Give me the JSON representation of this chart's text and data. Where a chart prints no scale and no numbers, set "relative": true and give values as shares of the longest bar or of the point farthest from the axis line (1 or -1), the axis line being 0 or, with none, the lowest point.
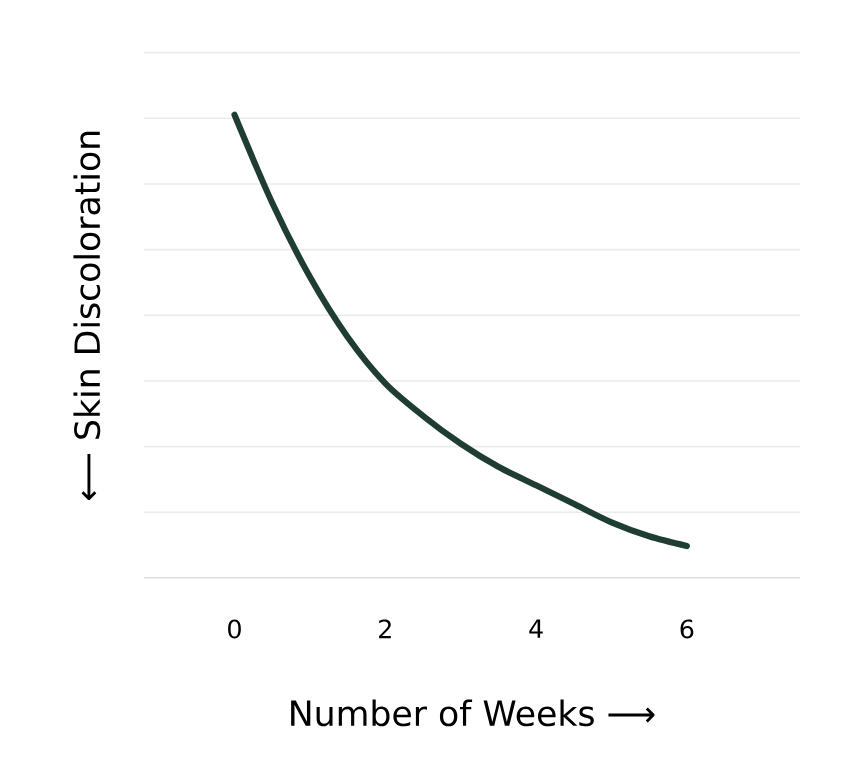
{
  "chart_data": {
    "type": "line",
    "xlabel": "Number of Weeks ⟶",
    "ylabel": "⟵ Skin Discoloration",
    "relative": true,
    "grid": "y",
    "tick_labels": "x",
    "marker": "none",
    "line_style": "solid",
    "x": [
      0,
      0.5,
      1,
      1.5,
      2,
      2.5,
      3,
      3.5,
      4,
      4.5,
      5,
      5.5,
      6
    ],
    "series": [
      {
        "color": "#1f3d32",
        "values": [
          1,
          0.81,
          0.65,
          0.52,
          0.42,
          0.35,
          0.29,
          0.24,
          0.2,
          0.16,
          0.12,
          0.09,
          0.069
        ]
      }
    ],
    "xlim": [
      -1.2,
      7.5
    ],
    "xticks": [
      0,
      2,
      4,
      6
    ]
  }
}
